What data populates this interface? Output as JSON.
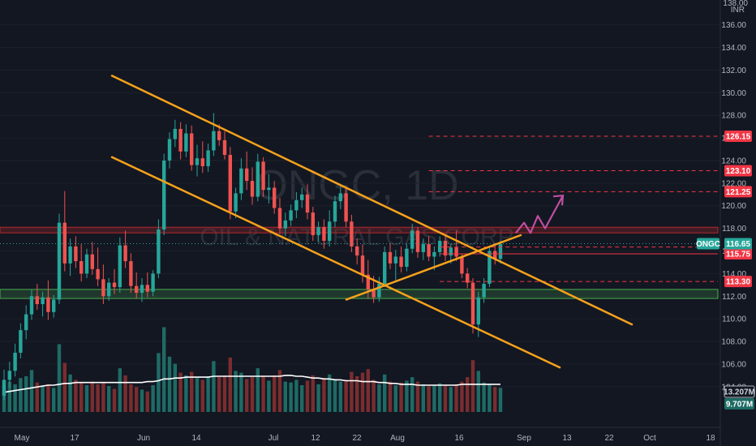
{
  "chart_data": {
    "type": "candlestick",
    "symbol": "ONGC",
    "watermark_symbol": "ONGC, 1D",
    "watermark_name": "OIL & NATURAL GAS CORP",
    "currency": "INR",
    "price_axis": {
      "ylim": [
        100.4,
        138.2
      ],
      "ticks": [
        104,
        106,
        108,
        110,
        112,
        114,
        116,
        118,
        120,
        122,
        124,
        126,
        128,
        130,
        132,
        134,
        136
      ],
      "top_label": "138.00"
    },
    "time_axis": {
      "ticks": [
        "May",
        "17",
        "Jun",
        "14",
        "Jul",
        "12",
        "22",
        "Aug",
        "16",
        "Sep",
        "13",
        "22",
        "Oct",
        "18"
      ]
    },
    "candles": [
      [
        103.2,
        105.5,
        102.8,
        104.6
      ],
      [
        104.6,
        106.2,
        103.9,
        105.4
      ],
      [
        105.4,
        107.8,
        104.9,
        107.0
      ],
      [
        107.0,
        109.6,
        106.5,
        109.0
      ],
      [
        109.0,
        111.2,
        108.2,
        110.4
      ],
      [
        110.4,
        112.6,
        109.9,
        112.0
      ],
      [
        112.0,
        113.1,
        110.8,
        111.3
      ],
      [
        111.3,
        112.4,
        110.2,
        111.9
      ],
      [
        111.9,
        113.4,
        109.9,
        110.6
      ],
      [
        110.6,
        112.1,
        110.1,
        111.7
      ],
      [
        111.7,
        119.3,
        111.3,
        118.5
      ],
      [
        118.5,
        121.3,
        114.2,
        114.9
      ],
      [
        114.9,
        117.1,
        113.8,
        116.4
      ],
      [
        116.4,
        117.3,
        114.5,
        115.1
      ],
      [
        115.1,
        116.6,
        113.3,
        114.0
      ],
      [
        114.0,
        116.2,
        113.6,
        115.7
      ],
      [
        115.7,
        116.8,
        113.9,
        114.4
      ],
      [
        114.4,
        116.3,
        112.9,
        113.5
      ],
      [
        113.5,
        114.8,
        111.3,
        112.0
      ],
      [
        112.0,
        113.6,
        111.6,
        113.2
      ],
      [
        113.2,
        114.4,
        112.2,
        112.8
      ],
      [
        112.8,
        117.2,
        112.3,
        116.5
      ],
      [
        116.5,
        117.8,
        114.5,
        115.1
      ],
      [
        115.1,
        115.8,
        112.3,
        112.9
      ],
      [
        112.9,
        114.1,
        111.8,
        112.3
      ],
      [
        112.3,
        113.6,
        111.5,
        113.0
      ],
      [
        113.0,
        114.1,
        111.9,
        112.4
      ],
      [
        112.4,
        114.3,
        112.0,
        114.0
      ],
      [
        114.0,
        118.8,
        113.6,
        117.9
      ],
      [
        117.9,
        124.6,
        117.4,
        124.0
      ],
      [
        124.0,
        126.5,
        123.3,
        125.9
      ],
      [
        125.9,
        127.6,
        125.2,
        126.8
      ],
      [
        126.8,
        127.4,
        124.1,
        124.8
      ],
      [
        124.8,
        127.2,
        124.3,
        126.4
      ],
      [
        126.4,
        127.1,
        123.1,
        123.6
      ],
      [
        123.6,
        125.4,
        122.6,
        124.2
      ],
      [
        124.2,
        125.7,
        122.9,
        123.5
      ],
      [
        123.5,
        125.5,
        123.0,
        124.9
      ],
      [
        124.9,
        128.2,
        124.4,
        126.6
      ],
      [
        126.6,
        127.2,
        125.3,
        125.8
      ],
      [
        125.8,
        126.6,
        124.1,
        124.5
      ],
      [
        124.5,
        125.2,
        118.8,
        119.5
      ],
      [
        119.5,
        121.6,
        118.9,
        121.1
      ],
      [
        121.1,
        124.2,
        120.5,
        123.3
      ],
      [
        123.3,
        124.8,
        121.4,
        122.2
      ],
      [
        122.2,
        123.4,
        120.1,
        120.8
      ],
      [
        120.8,
        124.6,
        120.4,
        123.9
      ],
      [
        123.9,
        124.3,
        120.8,
        121.4
      ],
      [
        121.4,
        122.8,
        120.2,
        121.6
      ],
      [
        121.6,
        122.2,
        119.3,
        119.8
      ],
      [
        119.8,
        120.7,
        117.5,
        118.0
      ],
      [
        118.0,
        119.4,
        117.3,
        118.7
      ],
      [
        118.7,
        120.1,
        118.2,
        119.6
      ],
      [
        119.6,
        121.2,
        118.9,
        120.5
      ],
      [
        120.5,
        121.6,
        119.8,
        121.0
      ],
      [
        121.0,
        121.9,
        118.8,
        119.4
      ],
      [
        119.4,
        119.9,
        116.9,
        117.4
      ],
      [
        117.4,
        118.6,
        116.8,
        118.1
      ],
      [
        118.1,
        118.8,
        116.2,
        116.9
      ],
      [
        116.9,
        119.6,
        116.4,
        118.6
      ],
      [
        118.6,
        120.9,
        118.1,
        120.4
      ],
      [
        120.4,
        121.7,
        119.7,
        121.1
      ],
      [
        121.1,
        121.6,
        118.1,
        118.6
      ],
      [
        118.6,
        119.2,
        115.9,
        116.4
      ],
      [
        116.4,
        117.1,
        114.8,
        115.6
      ],
      [
        115.6,
        116.6,
        113.2,
        113.9
      ],
      [
        113.9,
        115.2,
        111.8,
        112.6
      ],
      [
        112.6,
        113.8,
        111.4,
        111.9
      ],
      [
        111.9,
        113.7,
        111.5,
        113.1
      ],
      [
        113.1,
        116.4,
        112.8,
        115.9
      ],
      [
        115.9,
        116.7,
        114.4,
        114.9
      ],
      [
        114.9,
        116.1,
        113.4,
        115.5
      ],
      [
        115.5,
        116.4,
        114.1,
        114.6
      ],
      [
        114.6,
        116.6,
        114.2,
        116.2
      ],
      [
        116.2,
        118.4,
        115.8,
        117.8
      ],
      [
        117.8,
        118.1,
        115.4,
        115.9
      ],
      [
        115.9,
        117.1,
        115.2,
        116.6
      ],
      [
        116.6,
        117.3,
        115.1,
        115.5
      ],
      [
        115.5,
        116.4,
        114.3,
        115.9
      ],
      [
        115.9,
        117.3,
        115.5,
        116.9
      ],
      [
        116.9,
        117.3,
        115.1,
        115.6
      ],
      [
        115.6,
        116.6,
        114.9,
        116.3
      ],
      [
        116.3,
        117.8,
        115.1,
        115.5
      ],
      [
        115.5,
        115.7,
        113.6,
        114.0
      ],
      [
        114.0,
        114.5,
        112.7,
        113.2
      ],
      [
        113.2,
        113.6,
        108.7,
        109.5
      ],
      [
        109.5,
        112.4,
        108.4,
        111.9
      ],
      [
        111.9,
        113.6,
        111.4,
        113.1
      ],
      [
        113.1,
        116.4,
        112.8,
        116.0
      ],
      [
        116.0,
        116.7,
        114.8,
        115.3
      ],
      [
        115.3,
        116.9,
        114.9,
        116.6
      ]
    ],
    "volume_bars": [
      0.28,
      0.34,
      0.31,
      0.38,
      0.4,
      0.47,
      0.33,
      0.29,
      0.31,
      0.27,
      0.76,
      0.55,
      0.42,
      0.36,
      0.33,
      0.3,
      0.34,
      0.31,
      0.33,
      0.29,
      0.26,
      0.49,
      0.41,
      0.31,
      0.28,
      0.25,
      0.23,
      0.3,
      0.66,
      0.95,
      0.62,
      0.54,
      0.44,
      0.41,
      0.45,
      0.38,
      0.36,
      0.4,
      0.57,
      0.39,
      0.41,
      0.61,
      0.46,
      0.44,
      0.37,
      0.39,
      0.49,
      0.4,
      0.35,
      0.41,
      0.47,
      0.34,
      0.33,
      0.36,
      0.3,
      0.35,
      0.41,
      0.31,
      0.38,
      0.42,
      0.37,
      0.34,
      0.36,
      0.45,
      0.4,
      0.44,
      0.48,
      0.36,
      0.31,
      0.42,
      0.34,
      0.3,
      0.33,
      0.35,
      0.39,
      0.34,
      0.31,
      0.29,
      0.3,
      0.32,
      0.3,
      0.28,
      0.31,
      0.34,
      0.39,
      0.58,
      0.46,
      0.33,
      0.31,
      0.28,
      0.27
    ],
    "volume_ma": [
      0.22,
      0.23,
      0.24,
      0.25,
      0.26,
      0.27,
      0.28,
      0.29,
      0.3,
      0.3,
      0.31,
      0.32,
      0.32,
      0.33,
      0.33,
      0.33,
      0.33,
      0.33,
      0.33,
      0.33,
      0.33,
      0.33,
      0.33,
      0.33,
      0.33,
      0.33,
      0.34,
      0.34,
      0.35,
      0.37,
      0.37,
      0.38,
      0.38,
      0.39,
      0.39,
      0.39,
      0.39,
      0.39,
      0.4,
      0.4,
      0.4,
      0.4,
      0.4,
      0.4,
      0.4,
      0.4,
      0.4,
      0.4,
      0.4,
      0.4,
      0.4,
      0.41,
      0.41,
      0.4,
      0.4,
      0.39,
      0.38,
      0.38,
      0.37,
      0.37,
      0.36,
      0.36,
      0.35,
      0.35,
      0.35,
      0.34,
      0.34,
      0.34,
      0.33,
      0.33,
      0.32,
      0.32,
      0.31,
      0.31,
      0.31,
      0.3,
      0.3,
      0.3,
      0.3,
      0.3,
      0.3,
      0.3,
      0.3,
      0.31,
      0.31,
      0.31,
      0.31,
      0.31,
      0.31,
      0.31,
      0.31
    ],
    "volume_ma_label": "13.207M",
    "volume_label": "9.707M",
    "resistance_zone": [
      117.6,
      118.1
    ],
    "support_zone": [
      111.8,
      112.6
    ],
    "upper_channel_line": [
      [
        3,
        131.5
      ],
      [
        92,
        109.5
      ]
    ],
    "lower_channel_line": [
      [
        3,
        124.3
      ],
      [
        84,
        105.7
      ]
    ],
    "breakout_line": [
      [
        13,
        111.7
      ],
      [
        52,
        117.4
      ]
    ],
    "projection_arrow": [
      [
        52,
        117.6
      ],
      [
        54,
        118.5
      ],
      [
        55,
        117.6
      ],
      [
        57,
        119.1
      ],
      [
        58,
        118.0
      ],
      [
        61,
        120.9
      ]
    ],
    "projection_arrow_color": "#c04fa0",
    "last_price": {
      "value": 116.65,
      "label": "ONGC",
      "text": "116.65",
      "color": "#26a69a"
    },
    "price_levels": [
      {
        "value": 126.15,
        "text": "126.15",
        "color": "#f23645",
        "dashed": true
      },
      {
        "value": 123.1,
        "text": "123.10",
        "color": "#f23645",
        "dashed": true
      },
      {
        "value": 121.25,
        "text": "121.25",
        "color": "#f23645",
        "dashed": true
      },
      {
        "value": 116.35,
        "text": "116.35",
        "color": "#f23645",
        "dashed": true
      },
      {
        "value": 115.75,
        "text": "115.75",
        "color": "#f23645",
        "dashed": false
      },
      {
        "value": 113.3,
        "text": "113.30",
        "color": "#f23645",
        "dashed": true
      }
    ],
    "colors": {
      "background": "#131722",
      "up": "#26a69a",
      "down": "#ef5350",
      "trendline": "#f7a21b",
      "resistance": "#b2272c",
      "support": "#4caf50",
      "volume_up": "#1e6b65",
      "volume_down": "#7a2d2f",
      "volume_ma": "#ffffff"
    }
  }
}
